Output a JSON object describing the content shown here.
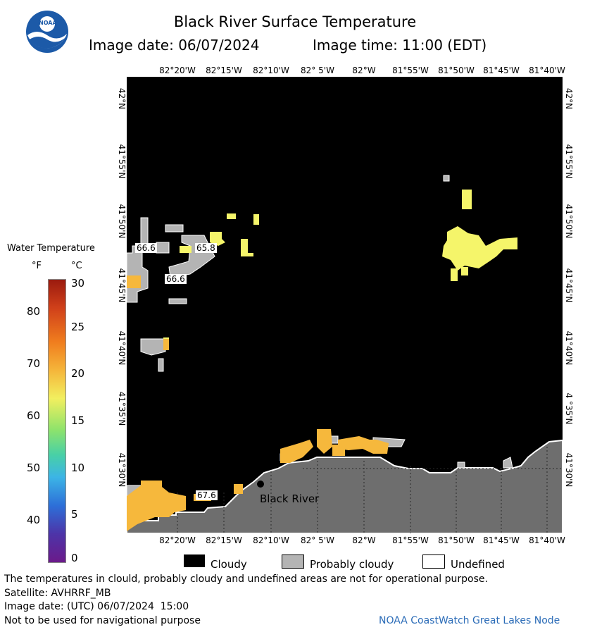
{
  "header": {
    "title": "Black River Surface Temperature",
    "image_date": "Image date: 06/07/2024",
    "image_time": "Image time: 11:00 (EDT)"
  },
  "logo": {
    "text": "NOAA"
  },
  "map": {
    "longitude_ticks": [
      "82°20'W",
      "82°15'W",
      "82°10'W",
      "82° 5'W",
      "82°W",
      "81°55'W",
      "81°50'W",
      "81°45'W",
      "81°40'W"
    ],
    "latitude_ticks_left": [
      "42°N",
      "41°55'N",
      "41°50'N",
      "41°45'N",
      "41°40'N",
      "41°35'N",
      "41°30'N"
    ],
    "latitude_ticks_right": [
      "42°N",
      "41°55'N",
      "41°50'N",
      "41°45'N",
      "41°40'N",
      "4 °35'N",
      "41°30'N"
    ],
    "temperature_labels": [
      "66.6",
      "65.8",
      "66.6",
      "67.6"
    ],
    "place_label": "Black River",
    "colors": {
      "cloud": "#000000",
      "land": "#6e6e6e",
      "probably_cloudy": "#b4b4b4",
      "warm_water": "#f6b83c",
      "mild_water": "#f5f56a"
    }
  },
  "legend": {
    "title": "Water Temperature",
    "unit_f": "°F",
    "unit_c": "°C",
    "fahrenheit_ticks": [
      "80",
      "70",
      "60",
      "50",
      "40"
    ],
    "celsius_ticks": [
      "30",
      "25",
      "20",
      "15",
      "10",
      "5",
      "0"
    ]
  },
  "key": {
    "cloudy": "Cloudy",
    "probably_cloudy": "Probably cloudy",
    "undefined": "Undefined"
  },
  "footer": {
    "disclaimer": "The temperatures in clould, probably cloudy and undefined areas are not for operational purpose.",
    "satellite": "Satellite: AVHRRF_MB",
    "utc_date": "Image date: (UTC) 06/07/2024  15:00",
    "navigation": "Not to be used for navigational purpose",
    "credit": "NOAA CoastWatch Great Lakes Node"
  }
}
